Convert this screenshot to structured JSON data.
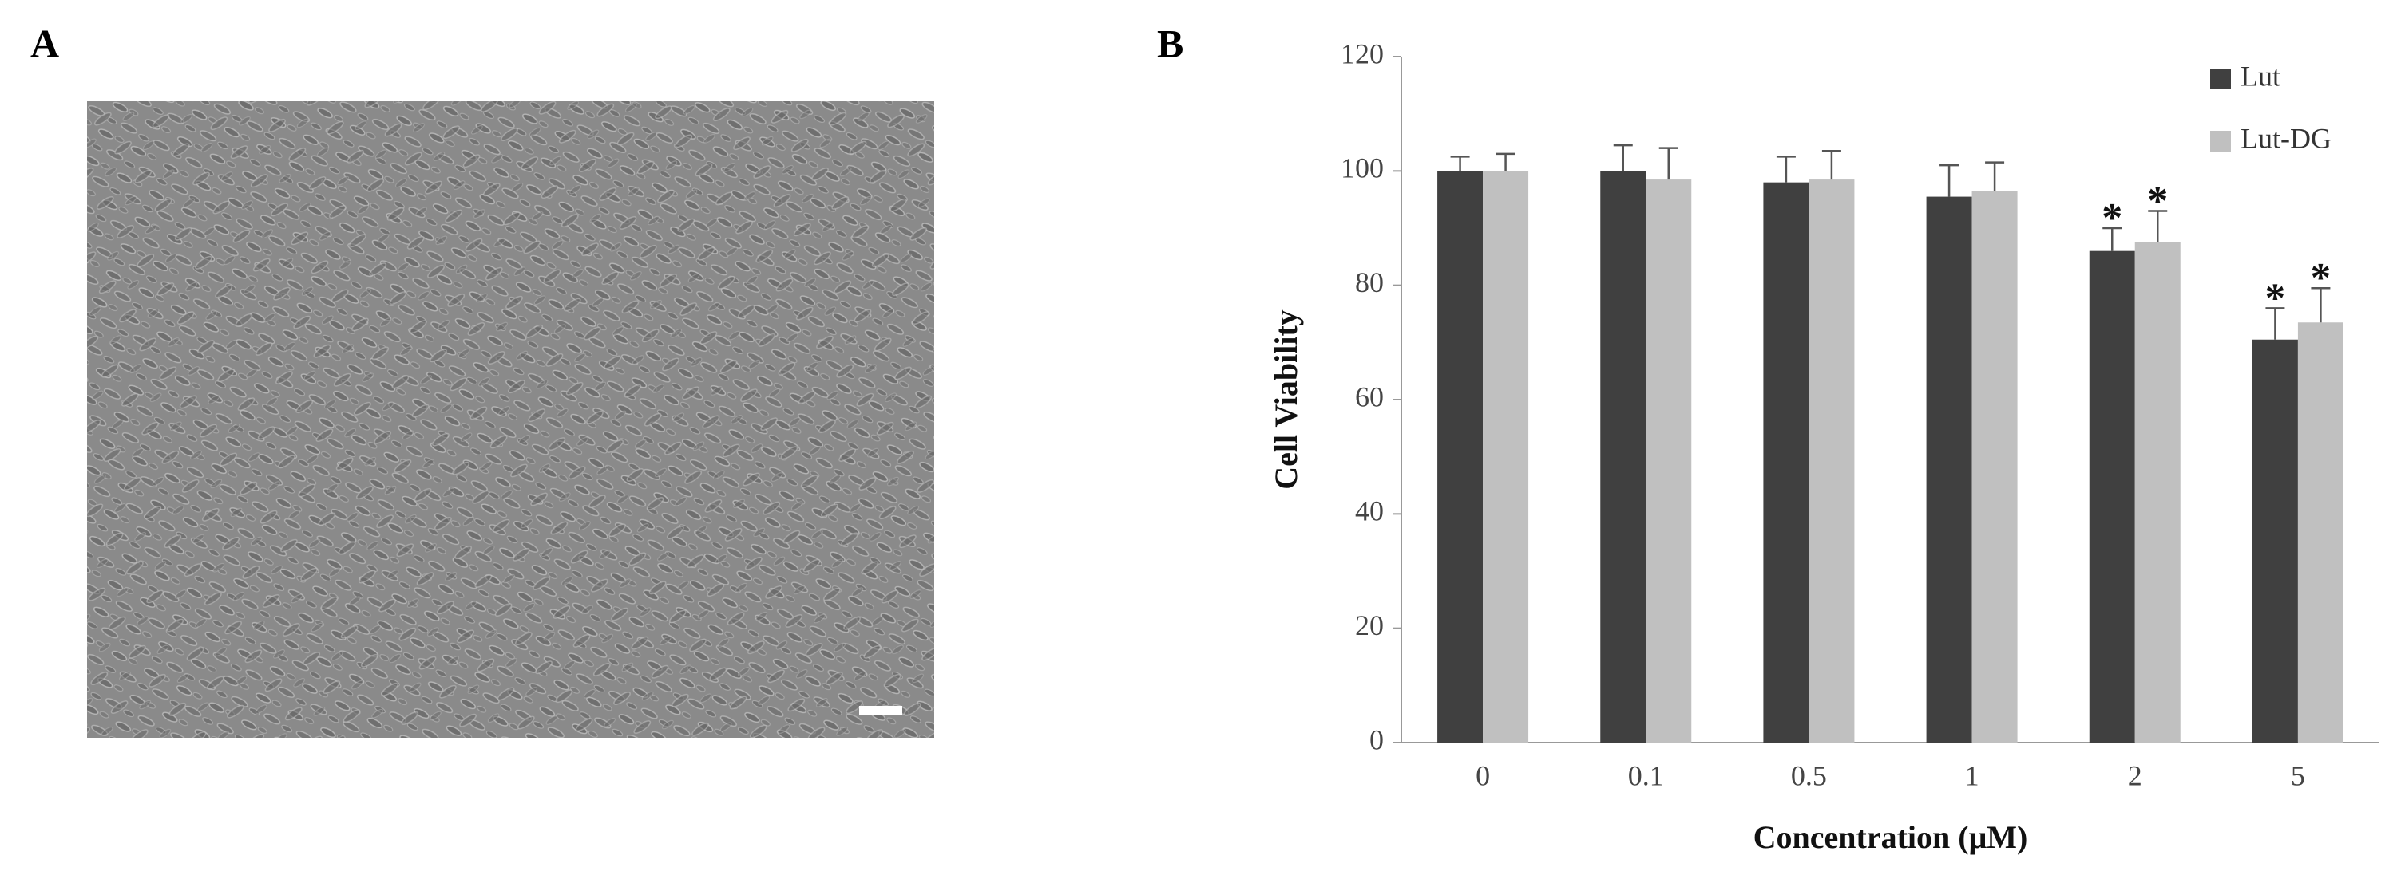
{
  "panels": {
    "a": "A",
    "b": "B"
  },
  "chart_data": {
    "type": "bar",
    "categories": [
      "0",
      "0.1",
      "0.5",
      "1",
      "2",
      "5"
    ],
    "series": [
      {
        "name": "Lut",
        "color": "#404040",
        "values": [
          100,
          100,
          98,
          95.5,
          86,
          70.5
        ],
        "errors": [
          2.5,
          4.5,
          4.5,
          5.5,
          4,
          5.5
        ],
        "annotations": [
          null,
          null,
          null,
          null,
          "*",
          "*"
        ]
      },
      {
        "name": "Lut-DG",
        "color": "#c0c0c0",
        "values": [
          100,
          98.5,
          98.5,
          96.5,
          87.5,
          73.5
        ],
        "errors": [
          3,
          5.5,
          5,
          5,
          5.5,
          6
        ],
        "annotations": [
          null,
          null,
          null,
          null,
          "*",
          "*"
        ]
      }
    ],
    "ylim": [
      0,
      120
    ],
    "yticks": [
      0,
      20,
      40,
      60,
      80,
      100,
      120
    ],
    "ylabel": "Cell Viability",
    "xlabel": "Concentration (μM)",
    "legend": "top-right",
    "grid": false
  }
}
